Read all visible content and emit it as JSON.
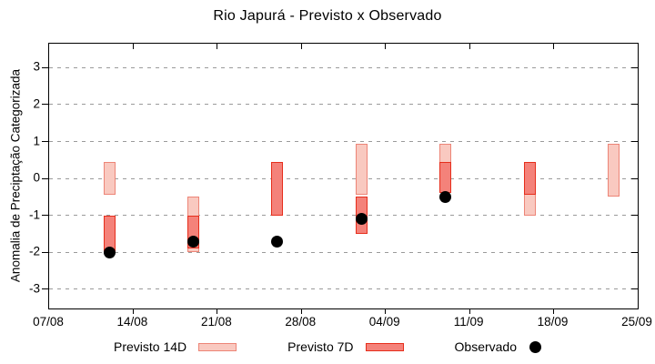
{
  "colors": {
    "previsto14d_fill": "#f9c9c0",
    "previsto14d_border": "#ed8577",
    "previsto7d_fill": "#f4827a",
    "previsto7d_border": "#e62e1c",
    "observado": "#000000",
    "grid": "#9a9a9a",
    "axis": "#000000"
  },
  "legend": {
    "items": [
      {
        "label": "Previsto 14D",
        "marker": "bar-light"
      },
      {
        "label": "Previsto 7D",
        "marker": "bar-dark"
      },
      {
        "label": "Observado",
        "marker": "black-dot"
      }
    ]
  },
  "chart_data": {
    "type": "bar",
    "title": "Rio Japurá - Previsto x Observado",
    "xlabel": "",
    "ylabel": "Anomalia de Preciptação Categorizada",
    "grid": true,
    "legend_position": "bottom",
    "ylim": [
      -3.52,
      3.65
    ],
    "xlim_days": [
      0,
      49
    ],
    "y_ticks": [
      3,
      2,
      1,
      0,
      -1,
      -2,
      -3
    ],
    "x_ticks": [
      {
        "day": 0,
        "label": "07/08"
      },
      {
        "day": 7,
        "label": "14/08"
      },
      {
        "day": 14,
        "label": "21/08"
      },
      {
        "day": 21,
        "label": "28/08"
      },
      {
        "day": 28,
        "label": "04/09"
      },
      {
        "day": 35,
        "label": "11/09"
      },
      {
        "day": 42,
        "label": "18/09"
      },
      {
        "day": 49,
        "label": "25/09"
      }
    ],
    "groups": [
      {
        "day": 5,
        "date": "12/08",
        "previsto_14d": {
          "from": -0.45,
          "to": 0.45
        },
        "previsto_7d": {
          "from": -2.0,
          "to": -1.0
        },
        "observado": -2.0
      },
      {
        "day": 12,
        "date": "19/08",
        "previsto_14d": {
          "from": -2.0,
          "to": -0.5
        },
        "previsto_7d": {
          "from": -1.9,
          "to": -1.0
        },
        "observado": -1.7
      },
      {
        "day": 19,
        "date": "26/08",
        "previsto_14d": null,
        "previsto_7d": {
          "from": -1.0,
          "to": 0.45
        },
        "observado": -1.7
      },
      {
        "day": 26,
        "date": "02/09",
        "previsto_14d": {
          "from": -0.45,
          "to": 0.95
        },
        "previsto_7d": {
          "from": -1.5,
          "to": -0.5
        },
        "observado": -1.1
      },
      {
        "day": 33,
        "date": "09/09",
        "previsto_14d": {
          "from": -0.4,
          "to": 0.95
        },
        "previsto_7d": {
          "from": -0.4,
          "to": 0.45
        },
        "observado": -0.5
      },
      {
        "day": 40,
        "date": "16/09",
        "previsto_14d": {
          "from": -1.0,
          "to": 0.45
        },
        "previsto_7d": {
          "from": -0.45,
          "to": 0.45
        },
        "observado": null
      },
      {
        "day": 47,
        "date": "23/09",
        "previsto_14d": {
          "from": -0.5,
          "to": 0.95
        },
        "previsto_7d": null,
        "observado": null
      }
    ]
  }
}
